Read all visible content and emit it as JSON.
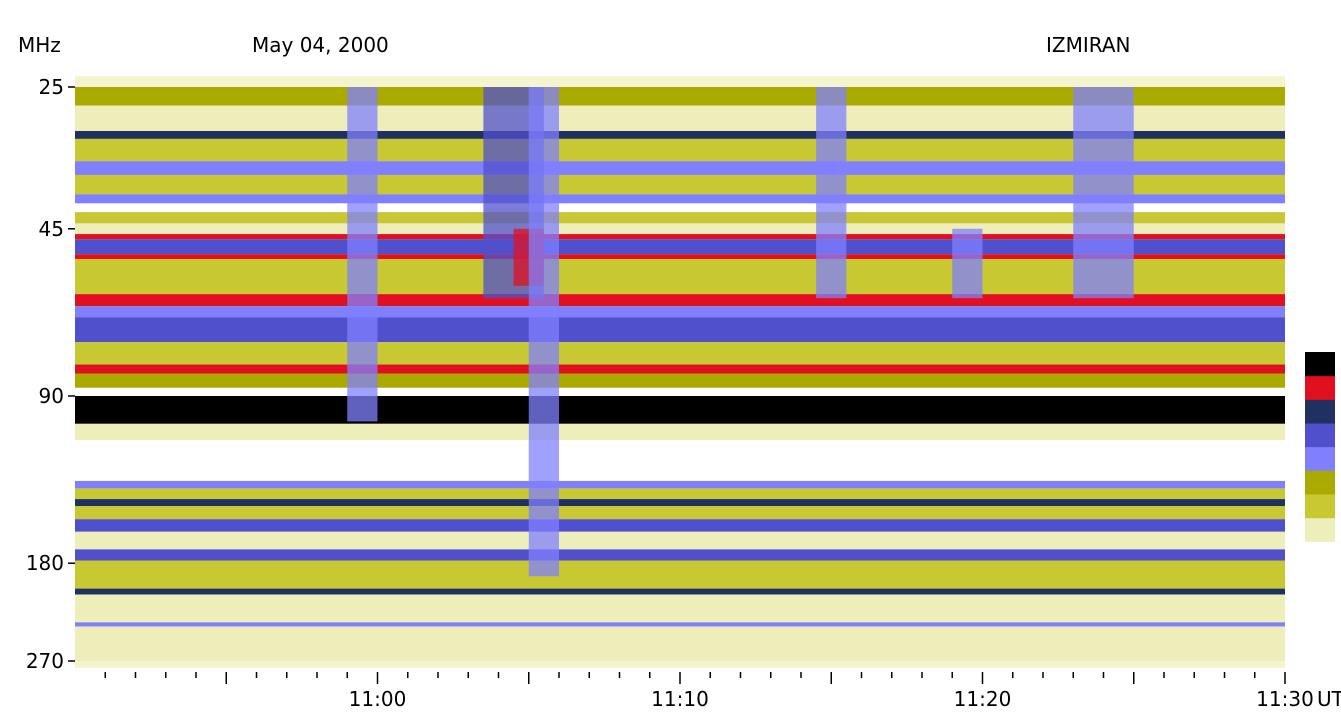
{
  "header": {
    "unit_label": "MHz",
    "date": "May 04, 2000",
    "observatory": "IZMIRAN"
  },
  "chart_data": {
    "type": "heatmap",
    "x_axis": {
      "unit": "UT",
      "ticks": [
        "11:00",
        "11:10",
        "11:20",
        "11:30"
      ],
      "range": [
        "10:50",
        "11:30"
      ]
    },
    "y_axis": {
      "unit": "MHz",
      "ticks": [
        25,
        45,
        90,
        180,
        270
      ],
      "range": [
        25,
        270
      ]
    },
    "color_scale": [
      "#ffffff",
      "#eeeebb",
      "#c8c832",
      "#aaaa00",
      "#8080ff",
      "#5050cc",
      "#203060",
      "#e01020",
      "#000000"
    ],
    "bands": [
      {
        "f0": 25,
        "f1": 27,
        "level": 0.35
      },
      {
        "f0": 27,
        "f1": 30,
        "level": 0.15
      },
      {
        "f0": 30,
        "f1": 31,
        "level": 0.7
      },
      {
        "f0": 31,
        "f1": 34,
        "level": 0.3
      },
      {
        "f0": 34,
        "f1": 36,
        "level": 0.45
      },
      {
        "f0": 36,
        "f1": 39,
        "level": 0.3
      },
      {
        "f0": 39,
        "f1": 40.5,
        "level": 0.55
      },
      {
        "f0": 40.5,
        "f1": 42,
        "level": 0.05
      },
      {
        "f0": 42,
        "f1": 44,
        "level": 0.25
      },
      {
        "f0": 44,
        "f1": 46,
        "level": 0.1
      },
      {
        "f0": 46,
        "f1": 47,
        "level": 0.85
      },
      {
        "f0": 47,
        "f1": 50,
        "level": 0.65
      },
      {
        "f0": 50,
        "f1": 51,
        "level": 0.85
      },
      {
        "f0": 51,
        "f1": 59,
        "level": 0.25
      },
      {
        "f0": 59,
        "f1": 62,
        "level": 0.9
      },
      {
        "f0": 62,
        "f1": 65,
        "level": 0.5
      },
      {
        "f0": 65,
        "f1": 72,
        "level": 0.65
      },
      {
        "f0": 72,
        "f1": 79,
        "level": 0.3
      },
      {
        "f0": 79,
        "f1": 82,
        "level": 0.85
      },
      {
        "f0": 82,
        "f1": 87,
        "level": 0.35
      },
      {
        "f0": 87,
        "f1": 90,
        "level": 0.05
      },
      {
        "f0": 90,
        "f1": 101,
        "level": 0.95
      },
      {
        "f0": 101,
        "f1": 108,
        "level": 0.15
      },
      {
        "f0": 108,
        "f1": 128,
        "level": 0.05
      },
      {
        "f0": 128,
        "f1": 132,
        "level": 0.55
      },
      {
        "f0": 132,
        "f1": 138,
        "level": 0.25
      },
      {
        "f0": 138,
        "f1": 142,
        "level": 0.75
      },
      {
        "f0": 142,
        "f1": 150,
        "level": 0.2
      },
      {
        "f0": 150,
        "f1": 158,
        "level": 0.6
      },
      {
        "f0": 158,
        "f1": 170,
        "level": 0.1
      },
      {
        "f0": 170,
        "f1": 178,
        "level": 0.6
      },
      {
        "f0": 178,
        "f1": 182,
        "level": 0.2
      },
      {
        "f0": 182,
        "f1": 200,
        "level": 0.2
      },
      {
        "f0": 200,
        "f1": 205,
        "level": 0.7
      },
      {
        "f0": 205,
        "f1": 230,
        "level": 0.15
      },
      {
        "f0": 230,
        "f1": 234,
        "level": 0.5
      },
      {
        "f0": 234,
        "f1": 270,
        "level": 0.08
      }
    ],
    "bursts": [
      {
        "t0": "10:59",
        "t1": "11:00",
        "f0": 25,
        "f1": 100,
        "level": 0.55
      },
      {
        "t0": "11:03:30",
        "t1": "11:05:30",
        "f0": 25,
        "f1": 60,
        "level": 0.6
      },
      {
        "t0": "11:04:30",
        "t1": "11:05:30",
        "f0": 45,
        "f1": 57,
        "level": 0.9
      },
      {
        "t0": "11:05",
        "t1": "11:06",
        "f0": 25,
        "f1": 190,
        "level": 0.45
      },
      {
        "t0": "11:14:30",
        "t1": "11:15:30",
        "f0": 25,
        "f1": 60,
        "level": 0.45
      },
      {
        "t0": "11:19",
        "t1": "11:20",
        "f0": 45,
        "f1": 60,
        "level": 0.5
      },
      {
        "t0": "11:23",
        "t1": "11:25",
        "f0": 25,
        "f1": 60,
        "level": 0.45
      }
    ]
  }
}
